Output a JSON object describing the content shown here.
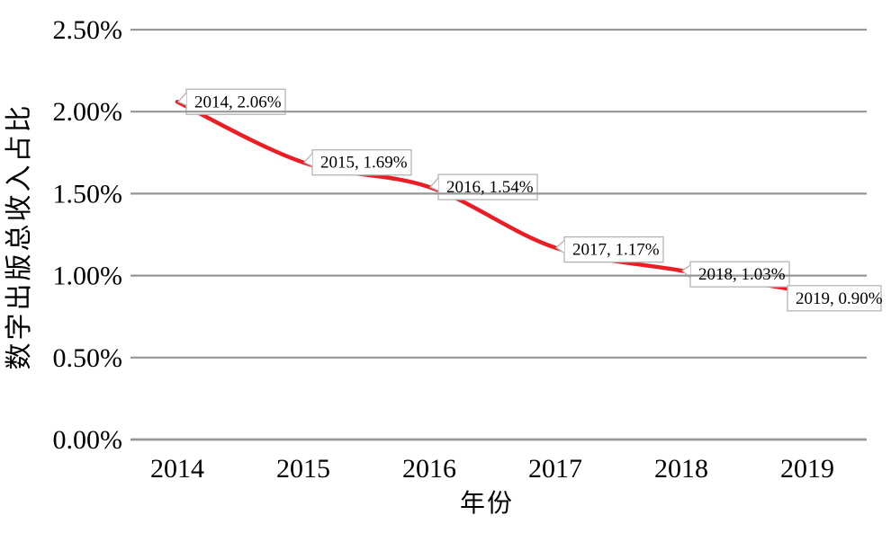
{
  "chart_data": {
    "type": "line",
    "title": "",
    "xlabel": "年份",
    "ylabel": "数字出版总收入占比",
    "categories": [
      "2014",
      "2015",
      "2016",
      "2017",
      "2018",
      "2019"
    ],
    "series": [
      {
        "name": "数字出版总收入占比",
        "values": [
          2.06,
          1.69,
          1.54,
          1.17,
          1.03,
          0.9
        ]
      }
    ],
    "data_labels": [
      "2014, 2.06%",
      "2015, 1.69%",
      "2016, 1.54%",
      "2017, 1.17%",
      "2018, 1.03%",
      "2019, 0.90%"
    ],
    "yticks": {
      "values": [
        0,
        0.5,
        1.0,
        1.5,
        2.0,
        2.5
      ],
      "labels": [
        "0.00%",
        "0.50%",
        "1.00%",
        "1.50%",
        "2.00%",
        "2.50%"
      ]
    },
    "ylim": [
      0,
      2.5
    ],
    "grid": true,
    "legend_position": "none",
    "line_smoothed": true,
    "colors": {
      "line": "#ec1c24",
      "grid": "#969696",
      "axis": "#969696",
      "callout_border": "#b3b3b3",
      "callout_fill": "#ffffff",
      "text": "#000000",
      "background": "#ffffff"
    }
  }
}
